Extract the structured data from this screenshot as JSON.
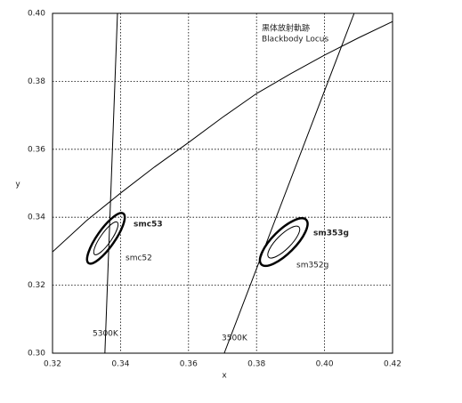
{
  "chart_data": {
    "type": "line",
    "x_label": "x",
    "y_label": "y",
    "xlim": [
      0.32,
      0.42
    ],
    "ylim": [
      0.3,
      0.4
    ],
    "xticks": [
      0.32,
      0.34,
      0.36,
      0.38,
      {
        "value": 0.4,
        "label": "0.40"
      },
      0.42
    ],
    "yticks": [
      {
        "value": 0.3,
        "label": "0.30"
      },
      0.32,
      0.34,
      0.36,
      0.38,
      {
        "value": 0.4,
        "label": "0.40"
      }
    ],
    "grid": true,
    "series": [
      {
        "color": "#000",
        "x": [
          0.32,
          0.33,
          0.34,
          0.35,
          0.36,
          0.37,
          0.38,
          0.39,
          0.4,
          0.41,
          0.42
        ],
        "values": [
          0.3298,
          0.339,
          0.3471,
          0.3548,
          0.362,
          0.3694,
          0.3764,
          0.3822,
          0.3877,
          0.3928,
          0.3976
        ]
      }
    ],
    "lines": [
      {
        "label": "5300K",
        "x": [
          0.3354,
          0.3391
        ],
        "values": [
          0.3,
          0.4
        ]
      },
      {
        "label": "3500K",
        "x": [
          0.3705,
          0.4087
        ],
        "values": [
          0.3,
          0.4
        ]
      }
    ],
    "ellipses": [
      {
        "label": "smc53",
        "cx": 0.3357,
        "cy": 0.3338,
        "a": 0.0089,
        "b": 0.0026,
        "angle": 55,
        "bold": true
      },
      {
        "label": "smc52",
        "cx": 0.3357,
        "cy": 0.3338,
        "a": 0.0058,
        "b": 0.0016,
        "angle": 55,
        "bold": false
      },
      {
        "label": "sm353g",
        "cx": 0.388,
        "cy": 0.3327,
        "a": 0.0093,
        "b": 0.0034,
        "angle": 45,
        "bold": true
      },
      {
        "label": "sm352g",
        "cx": 0.388,
        "cy": 0.3327,
        "a": 0.0063,
        "b": 0.0021,
        "angle": 45,
        "bold": false
      }
    ],
    "annotations": [
      "黒体放射軌跡",
      "Blackbody Locus"
    ]
  }
}
